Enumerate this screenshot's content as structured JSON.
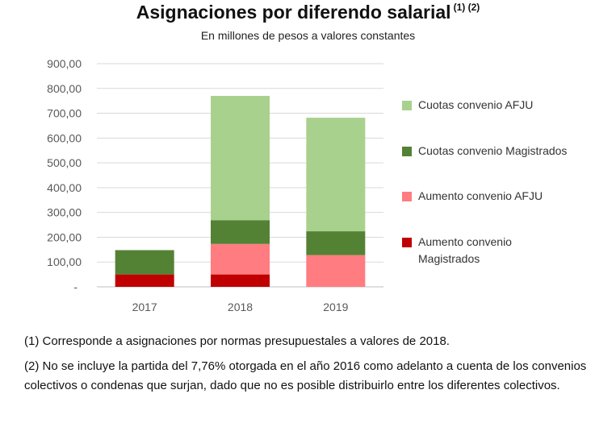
{
  "title": "Asignaciones por diferendo salarial",
  "title_notes": "(1) (2)",
  "subtitle": "En millones de pesos a valores constantes",
  "chart_data": {
    "type": "bar",
    "stacked": true,
    "categories": [
      "2017",
      "2018",
      "2019"
    ],
    "ylim": [
      0,
      900
    ],
    "y_ticks": [
      "-",
      "100,00",
      "200,00",
      "300,00",
      "400,00",
      "500,00",
      "600,00",
      "700,00",
      "800,00",
      "900,00"
    ],
    "grid": true,
    "legend_position": "right",
    "series": [
      {
        "name": "Aumento convenio Magistrados",
        "color": "#c00000",
        "values": [
          50,
          50,
          0
        ]
      },
      {
        "name": "Aumento convenio AFJU",
        "color": "#ff7c80",
        "values": [
          0,
          123,
          128
        ]
      },
      {
        "name": "Cuotas convenio Magistrados",
        "color": "#548235",
        "values": [
          98,
          96,
          96
        ]
      },
      {
        "name": "Cuotas convenio AFJU",
        "color": "#a9d18e",
        "values": [
          0,
          501,
          458
        ]
      }
    ],
    "legend_order": [
      3,
      2,
      1,
      0
    ]
  },
  "legend": [
    {
      "label": "Cuotas convenio AFJU",
      "color": "#a9d18e"
    },
    {
      "label": "Cuotas convenio Magistrados",
      "color": "#548235"
    },
    {
      "label": "Aumento convenio AFJU",
      "color": "#ff7c80"
    },
    {
      "label": "Aumento convenio Magistrados",
      "color": "#c00000"
    }
  ],
  "notes": {
    "note1": "(1) Corresponde a asignaciones por normas presupuestales a valores de 2018.",
    "note2": "(2) No se incluye la partida del 7,76% otorgada en el año 2016 como adelanto a cuenta de los convenios colectivos o condenas que surjan, dado que no es posible distribuirlo entre los diferentes colectivos."
  }
}
